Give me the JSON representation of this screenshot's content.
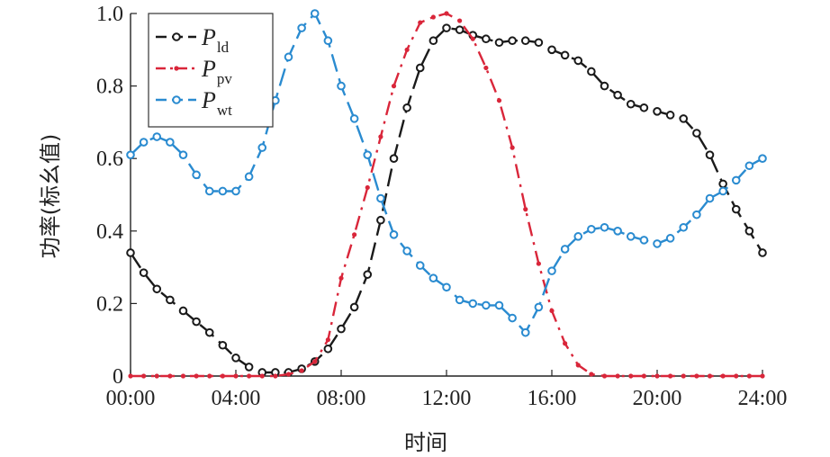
{
  "chart_data": {
    "type": "line",
    "xlabel": "时间",
    "ylabel": "功率(标幺值)",
    "xlim": [
      0,
      24
    ],
    "ylim": [
      0,
      1
    ],
    "x_tick_labels": [
      "00:00",
      "04:00",
      "08:00",
      "12:00",
      "16:00",
      "20:00",
      "24:00"
    ],
    "x_tick_values": [
      0,
      4,
      8,
      12,
      16,
      20,
      24
    ],
    "y_tick_labels": [
      "0",
      "0.2",
      "0.4",
      "0.6",
      "0.8",
      "1.0"
    ],
    "y_tick_values": [
      0,
      0.2,
      0.4,
      0.6,
      0.8,
      1.0
    ],
    "legend_position": "top-left",
    "series": [
      {
        "name": "P_ld",
        "legend_main": "P",
        "legend_sub": "ld",
        "color": "#1a1a1a",
        "marker": "circle",
        "x": [
          0,
          0.5,
          1,
          1.5,
          2,
          2.5,
          3,
          3.5,
          4,
          4.5,
          5,
          5.5,
          6,
          6.5,
          7,
          7.5,
          8,
          8.5,
          9,
          9.5,
          10,
          10.5,
          11,
          11.5,
          12,
          12.5,
          13,
          13.5,
          14,
          14.5,
          15,
          15.5,
          16,
          16.5,
          17,
          17.5,
          18,
          18.5,
          19,
          19.5,
          20,
          20.5,
          21,
          21.5,
          22,
          22.5,
          23,
          23.5,
          24
        ],
        "y": [
          0.34,
          0.285,
          0.24,
          0.21,
          0.18,
          0.15,
          0.12,
          0.085,
          0.05,
          0.025,
          0.01,
          0.01,
          0.01,
          0.02,
          0.04,
          0.075,
          0.13,
          0.19,
          0.28,
          0.43,
          0.6,
          0.74,
          0.85,
          0.925,
          0.96,
          0.955,
          0.94,
          0.93,
          0.92,
          0.925,
          0.925,
          0.92,
          0.9,
          0.885,
          0.87,
          0.84,
          0.8,
          0.775,
          0.75,
          0.74,
          0.73,
          0.72,
          0.71,
          0.67,
          0.61,
          0.53,
          0.46,
          0.4,
          0.34
        ]
      },
      {
        "name": "P_pv",
        "legend_main": "P",
        "legend_sub": "pv",
        "color": "#d9263a",
        "marker": "dot",
        "x": [
          0,
          0.5,
          1,
          1.5,
          2,
          2.5,
          3,
          3.5,
          4,
          4.5,
          5,
          5.5,
          6,
          6.5,
          7,
          7.5,
          8,
          8.5,
          9,
          9.5,
          10,
          10.5,
          11,
          11.5,
          12,
          12.5,
          13,
          13.5,
          14,
          14.5,
          15,
          15.5,
          16,
          16.5,
          17,
          17.5,
          18,
          18.5,
          19,
          19.5,
          20,
          20.5,
          21,
          21.5,
          22,
          22.5,
          23,
          23.5,
          24
        ],
        "y": [
          0,
          0,
          0,
          0,
          0,
          0,
          0,
          0,
          0,
          0,
          0,
          0,
          0.005,
          0.015,
          0.04,
          0.1,
          0.27,
          0.39,
          0.52,
          0.66,
          0.8,
          0.9,
          0.975,
          0.99,
          1.0,
          0.98,
          0.93,
          0.85,
          0.76,
          0.63,
          0.46,
          0.31,
          0.18,
          0.09,
          0.03,
          0.005,
          0,
          0,
          0,
          0,
          0,
          0,
          0,
          0,
          0,
          0,
          0,
          0,
          0
        ]
      },
      {
        "name": "P_wt",
        "legend_main": "P",
        "legend_sub": "wt",
        "color": "#2a8bd0",
        "marker": "circle",
        "x": [
          0,
          0.5,
          1,
          1.5,
          2,
          2.5,
          3,
          3.5,
          4,
          4.5,
          5,
          5.5,
          6,
          6.5,
          7,
          7.5,
          8,
          8.5,
          9,
          9.5,
          10,
          10.5,
          11,
          11.5,
          12,
          12.5,
          13,
          13.5,
          14,
          14.5,
          15,
          15.5,
          16,
          16.5,
          17,
          17.5,
          18,
          18.5,
          19,
          19.5,
          20,
          20.5,
          21,
          21.5,
          22,
          22.5,
          23,
          23.5,
          24
        ],
        "y": [
          0.61,
          0.645,
          0.66,
          0.645,
          0.61,
          0.555,
          0.51,
          0.51,
          0.51,
          0.55,
          0.63,
          0.76,
          0.88,
          0.96,
          1.0,
          0.925,
          0.8,
          0.71,
          0.61,
          0.49,
          0.39,
          0.345,
          0.305,
          0.27,
          0.245,
          0.21,
          0.2,
          0.195,
          0.195,
          0.16,
          0.12,
          0.19,
          0.29,
          0.35,
          0.385,
          0.405,
          0.41,
          0.4,
          0.385,
          0.375,
          0.365,
          0.38,
          0.41,
          0.445,
          0.49,
          0.51,
          0.54,
          0.58,
          0.6
        ]
      }
    ]
  }
}
